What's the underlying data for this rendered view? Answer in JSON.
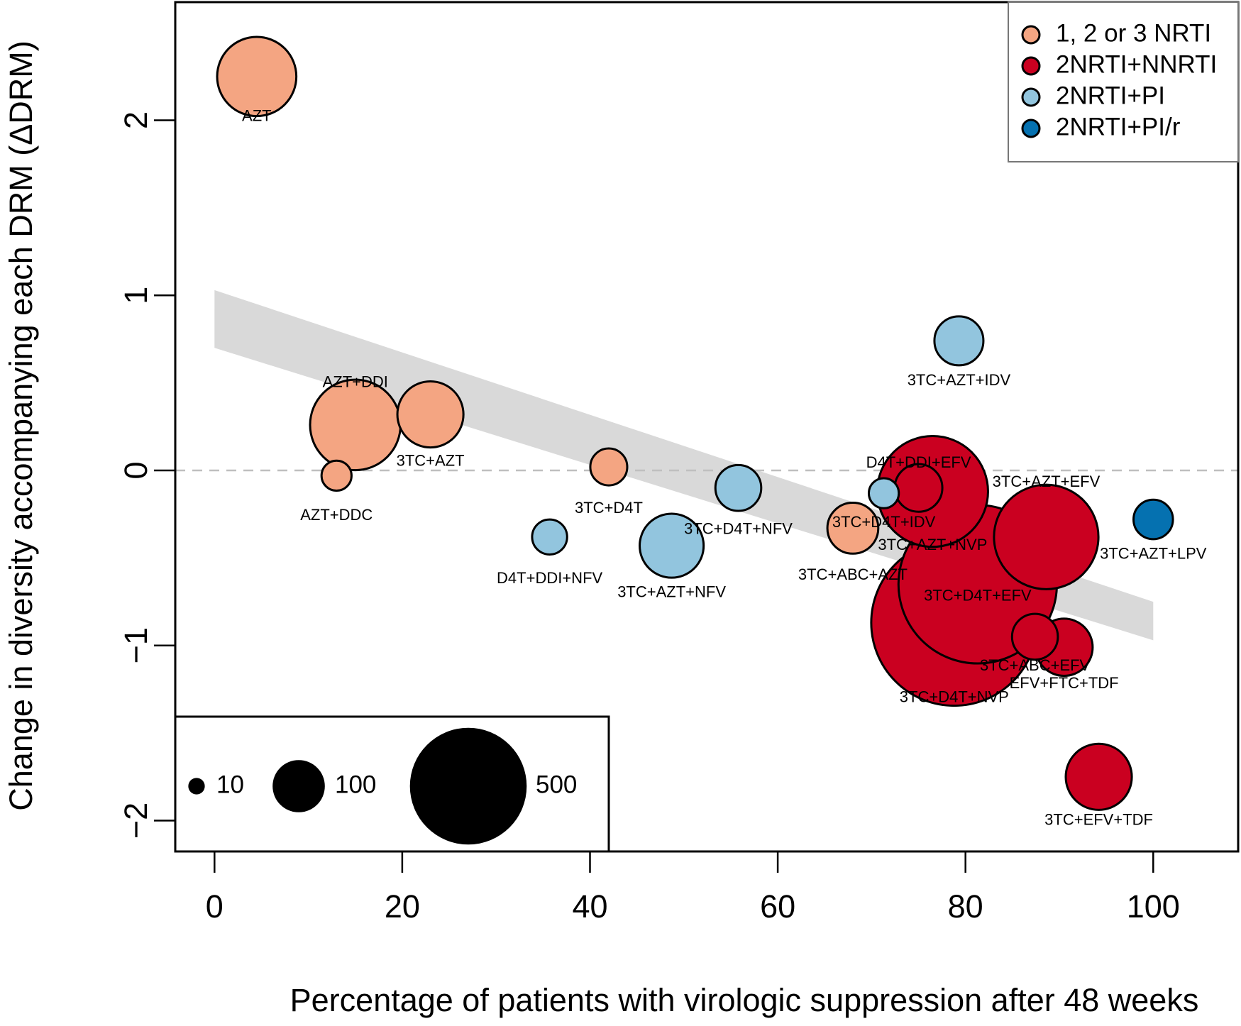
{
  "chart_data": {
    "type": "scatter",
    "subtype": "bubble",
    "title": "",
    "xlabel": "Percentage of patients with virologic suppression after 48 weeks",
    "ylabel": "Change in diversity accompanying each DRM (ΔDRM)",
    "xlim": [
      -4,
      110
    ],
    "ylim": [
      -2.2,
      2.68
    ],
    "xticks": [
      0,
      20,
      40,
      60,
      80,
      100
    ],
    "yticks": [
      -2,
      -1,
      0,
      1,
      2
    ],
    "xtick_labels": [
      "0",
      "20",
      "40",
      "60",
      "80",
      "100"
    ],
    "ytick_labels": [
      "−2",
      "−1",
      "0",
      "1",
      "2"
    ],
    "grid": false,
    "reference_line": {
      "y": 0,
      "style": "dashed",
      "color": "#bfbfbf"
    },
    "trend_band": {
      "color": "#d9d9d9",
      "x": [
        0,
        100
      ],
      "lower": [
        0.7,
        -0.97
      ],
      "upper": [
        1.03,
        -0.75
      ]
    },
    "legend": {
      "placement": "top-right",
      "entries": [
        {
          "label": "1, 2 or 3 NRTI",
          "color": "#f4a582"
        },
        {
          "label": "2NRTI+NNRTI",
          "color": "#ca0020"
        },
        {
          "label": "2NRTI+PI",
          "color": "#92c5de"
        },
        {
          "label": "2NRTI+PI/r",
          "color": "#0571b0"
        }
      ]
    },
    "size_legend": {
      "placement": "bottom-left",
      "entries": [
        {
          "label": "10",
          "n": 10
        },
        {
          "label": "100",
          "n": 100
        },
        {
          "label": "500",
          "n": 500
        }
      ]
    },
    "points": [
      {
        "label": "AZT",
        "x": 4.5,
        "y": 2.25,
        "n": 230,
        "group": 0,
        "lx": 4.5,
        "ly": 2.02
      },
      {
        "label": "AZT+DDI",
        "x": 15,
        "y": 0.26,
        "n": 300,
        "group": 0,
        "lx": 15,
        "ly": 0.5
      },
      {
        "label": "3TC+AZT",
        "x": 23,
        "y": 0.32,
        "n": 160,
        "group": 0,
        "lx": 23,
        "ly": 0.05
      },
      {
        "label": "AZT+DDC",
        "x": 13,
        "y": -0.03,
        "n": 33,
        "group": 0,
        "lx": 13,
        "ly": -0.26
      },
      {
        "label": "3TC+D4T",
        "x": 42,
        "y": 0.02,
        "n": 50,
        "group": 0,
        "lx": 42,
        "ly": -0.22
      },
      {
        "label": "D4T+DDI+NFV",
        "x": 35.7,
        "y": -0.38,
        "n": 45,
        "group": 2,
        "lx": 35.7,
        "ly": -0.62
      },
      {
        "label": "3TC+AZT+NFV",
        "x": 48.7,
        "y": -0.43,
        "n": 150,
        "group": 2,
        "lx": 48.7,
        "ly": -0.7
      },
      {
        "label": "3TC+D4T+NFV",
        "x": 55.8,
        "y": -0.1,
        "n": 77,
        "group": 2,
        "lx": 55.8,
        "ly": -0.34
      },
      {
        "label": "3TC+ABC+AZT",
        "x": 68,
        "y": -0.33,
        "n": 95,
        "group": 0,
        "lx": 68,
        "ly": -0.6
      },
      {
        "label": "3TC+D4T+IDV",
        "x": 71.3,
        "y": -0.13,
        "n": 33,
        "group": 2,
        "lx": 71.3,
        "ly": -0.3
      },
      {
        "label": "3TC+AZT+IDV",
        "x": 79.3,
        "y": 0.74,
        "n": 88,
        "group": 2,
        "lx": 79.3,
        "ly": 0.51
      },
      {
        "label": "3TC+AZT+NVP",
        "x": 76.5,
        "y": -0.12,
        "n": 450,
        "group": 1,
        "lx": 76.5,
        "ly": -0.43
      },
      {
        "label": "D4T+DDI+EFV",
        "x": 75,
        "y": -0.1,
        "n": 83,
        "group": 1,
        "lx": 75,
        "ly": 0.04
      },
      {
        "label": "3TC+D4T+NVP",
        "x": 78.8,
        "y": -0.87,
        "n": 1010,
        "group": 1,
        "lx": 78.8,
        "ly": -1.3
      },
      {
        "label": "3TC+D4T+EFV",
        "x": 81.3,
        "y": -0.65,
        "n": 920,
        "group": 1,
        "lx": 81.3,
        "ly": -0.72
      },
      {
        "label": "3TC+AZT+EFV",
        "x": 88.6,
        "y": -0.38,
        "n": 400,
        "group": 1,
        "lx": 88.6,
        "ly": -0.07
      },
      {
        "label": "3TC+ABC+EFV",
        "x": 87.4,
        "y": -0.95,
        "n": 77,
        "group": 1,
        "lx": 87.4,
        "ly": -1.12
      },
      {
        "label": "EFV+FTC+TDF",
        "x": 90.5,
        "y": -1.01,
        "n": 120,
        "group": 1,
        "lx": 90.5,
        "ly": -1.22
      },
      {
        "label": "3TC+AZT+LPV",
        "x": 100,
        "y": -0.28,
        "n": 57,
        "group": 3,
        "lx": 100,
        "ly": -0.48
      },
      {
        "label": "3TC+EFV+TDF",
        "x": 94.2,
        "y": -1.75,
        "n": 160,
        "group": 1,
        "lx": 94.2,
        "ly": -2.0
      }
    ]
  }
}
